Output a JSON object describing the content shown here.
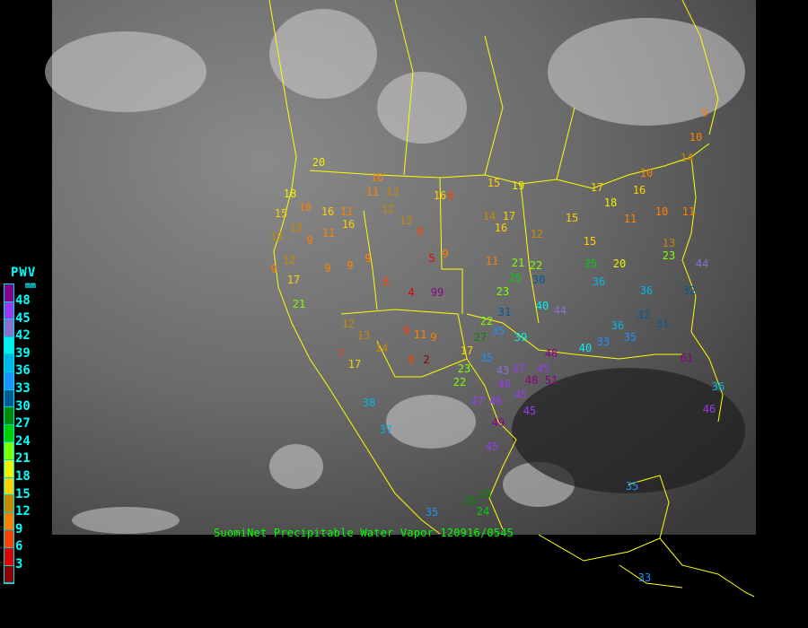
{
  "caption": "SuomiNet Precipitable Water Vapor 120916/0545",
  "legend": {
    "title": "PWV",
    "unit": "mm",
    "labels": [
      "48",
      "45",
      "42",
      "39",
      "36",
      "33",
      "30",
      "27",
      "24",
      "21",
      "18",
      "15",
      "12",
      "9",
      "6",
      "3"
    ],
    "colors": [
      "#8a008a",
      "#9a3af0",
      "#8a70d0",
      "#00f0f0",
      "#00b8e8",
      "#1e90ff",
      "#005a98",
      "#008a00",
      "#00d000",
      "#80ff00",
      "#f0f000",
      "#ffd000",
      "#c88800",
      "#ff8000",
      "#ff4000",
      "#e00000",
      "#900000"
    ]
  },
  "colors": {
    "boundaries": "#ffff00",
    "background": "#000000",
    "caption": "#00ff00"
  },
  "stations": [
    20,
    18,
    10,
    15,
    13,
    16,
    11,
    16,
    11,
    10,
    11,
    13,
    12,
    13,
    8,
    16,
    6,
    15,
    19,
    14,
    17,
    16,
    12,
    15,
    13,
    12,
    9,
    17,
    21,
    9,
    9,
    9,
    9,
    6,
    4,
    99,
    9,
    5,
    11,
    6,
    11,
    9,
    2,
    8,
    17,
    12,
    13,
    14,
    17,
    7,
    23,
    22,
    21,
    25,
    30,
    22,
    27,
    35,
    31,
    39,
    40,
    44,
    48,
    23,
    22,
    35,
    43,
    47,
    45,
    45,
    48,
    51,
    46,
    47,
    46,
    49,
    45,
    38,
    37,
    45,
    28,
    29,
    24,
    35,
    35,
    33,
    15,
    25,
    20,
    36,
    36,
    32,
    31,
    40,
    33,
    36,
    35,
    13,
    23,
    10,
    11,
    9,
    10,
    14,
    10,
    16,
    17,
    18,
    11,
    32,
    44,
    61,
    46,
    36
  ]
}
